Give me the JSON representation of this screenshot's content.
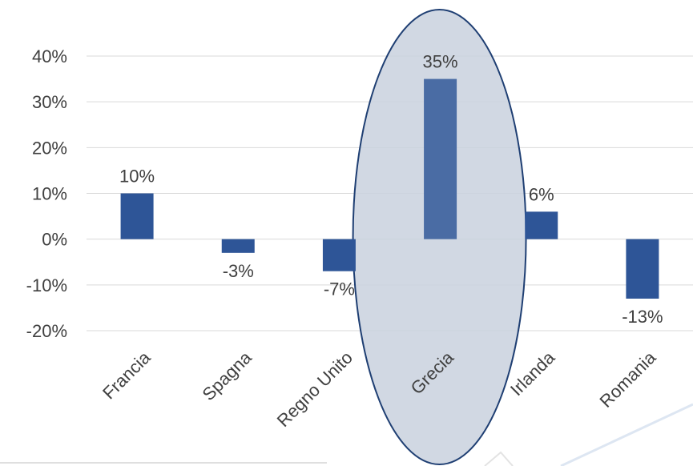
{
  "chart_data": {
    "type": "bar",
    "categories": [
      "Francia",
      "Spagna",
      "Regno Unito",
      "Grecia",
      "Irlanda",
      "Romania"
    ],
    "values": [
      10,
      -3,
      -7,
      35,
      6,
      -13
    ],
    "data_labels": [
      "10%",
      "-3%",
      "-7%",
      "35%",
      "6%",
      "-13%"
    ],
    "y_ticks": [
      40,
      30,
      20,
      10,
      0,
      -10,
      -20
    ],
    "y_tick_labels": [
      "40%",
      "30%",
      "20%",
      "10%",
      "0%",
      "-10%",
      "-20%"
    ],
    "ylim": [
      -20,
      40
    ],
    "grid": true,
    "highlight_category": "Grecia",
    "colors": {
      "bar": "#2e5597",
      "bar_highlight": "#4a6ca4",
      "highlight_fill": "#c9d1de",
      "highlight_stroke": "#1f3f73"
    }
  }
}
